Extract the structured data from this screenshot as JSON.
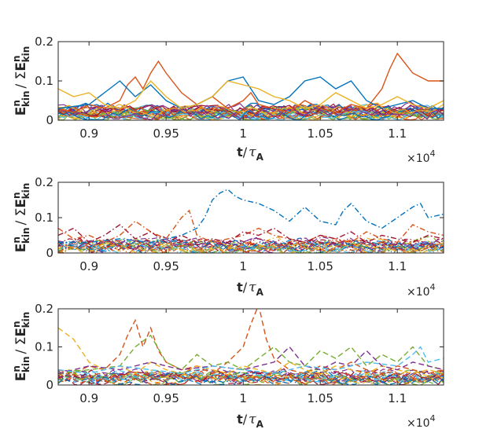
{
  "chart_data": [
    {
      "type": "line",
      "panel": "top",
      "line_style": "solid",
      "title": "",
      "xlabel": {
        "t": "t",
        "slash": "/",
        "tau": "τ",
        "sub": "A"
      },
      "ylabel": {
        "E": "E",
        "sup": "n",
        "sub": "kin",
        "mid": "/ Σ"
      },
      "x_exponent": {
        "prefix": "×10",
        "power": "4"
      },
      "xlim": [
        0.88,
        1.13
      ],
      "ylim": [
        0,
        0.2
      ],
      "x_ticks": [
        0.9,
        0.95,
        1,
        1.05,
        1.1
      ],
      "x_tick_labels": [
        "0.9",
        "0.95",
        "1",
        "1.05",
        "1.1"
      ],
      "y_ticks": [
        0,
        0.1,
        0.2
      ],
      "y_tick_labels": [
        "0",
        "0.1",
        "0.2"
      ],
      "n_series": 28,
      "highlight_series": [
        {
          "color": "#D95319",
          "x": [
            0.88,
            0.89,
            0.9,
            0.91,
            0.92,
            0.925,
            0.93,
            0.935,
            0.94,
            0.945,
            0.95,
            0.96,
            0.97,
            0.98,
            0.99,
            1.0,
            1.005,
            1.01,
            1.02,
            1.03,
            1.04,
            1.05,
            1.06,
            1.07,
            1.08,
            1.09,
            1.095,
            1.1,
            1.11,
            1.12,
            1.13
          ],
          "y": [
            0.03,
            0.02,
            0.04,
            0.03,
            0.05,
            0.09,
            0.11,
            0.08,
            0.12,
            0.15,
            0.12,
            0.07,
            0.04,
            0.06,
            0.03,
            0.05,
            0.07,
            0.04,
            0.03,
            0.02,
            0.05,
            0.03,
            0.02,
            0.04,
            0.03,
            0.08,
            0.13,
            0.17,
            0.12,
            0.1,
            0.1
          ]
        },
        {
          "color": "#0072BD",
          "x": [
            0.88,
            0.9,
            0.91,
            0.92,
            0.93,
            0.94,
            0.95,
            0.96,
            0.97,
            0.98,
            0.99,
            1.0,
            1.01,
            1.02,
            1.03,
            1.04,
            1.05,
            1.06,
            1.07,
            1.08,
            1.09,
            1.1,
            1.11,
            1.12,
            1.13
          ],
          "y": [
            0.03,
            0.04,
            0.07,
            0.1,
            0.06,
            0.09,
            0.05,
            0.03,
            0.04,
            0.06,
            0.1,
            0.11,
            0.05,
            0.04,
            0.06,
            0.1,
            0.11,
            0.08,
            0.1,
            0.05,
            0.03,
            0.04,
            0.05,
            0.03,
            0.03
          ]
        },
        {
          "color": "#EDB120",
          "x": [
            0.88,
            0.89,
            0.9,
            0.91,
            0.92,
            0.93,
            0.94,
            0.95,
            0.96,
            0.97,
            0.98,
            0.99,
            1.0,
            1.01,
            1.02,
            1.03,
            1.04,
            1.05,
            1.06,
            1.07,
            1.08,
            1.09,
            1.1,
            1.11,
            1.12,
            1.13
          ],
          "y": [
            0.08,
            0.06,
            0.07,
            0.04,
            0.03,
            0.05,
            0.1,
            0.06,
            0.03,
            0.04,
            0.06,
            0.1,
            0.09,
            0.08,
            0.06,
            0.05,
            0.03,
            0.04,
            0.07,
            0.05,
            0.03,
            0.04,
            0.06,
            0.04,
            0.03,
            0.05
          ]
        }
      ]
    },
    {
      "type": "line",
      "panel": "middle",
      "line_style": "dashdot",
      "title": "",
      "xlabel": {
        "t": "t",
        "slash": "/",
        "tau": "τ",
        "sub": "A"
      },
      "ylabel": {
        "E": "E",
        "sup": "n",
        "sub": "kin",
        "mid": "/ Σ"
      },
      "x_exponent": {
        "prefix": "×10",
        "power": "4"
      },
      "xlim": [
        0.88,
        1.13
      ],
      "ylim": [
        0,
        0.2
      ],
      "x_ticks": [
        0.9,
        0.95,
        1,
        1.05,
        1.1
      ],
      "x_tick_labels": [
        "0.9",
        "0.95",
        "1",
        "1.05",
        "1.1"
      ],
      "y_ticks": [
        0,
        0.1,
        0.2
      ],
      "y_tick_labels": [
        "0",
        "0.1",
        "0.2"
      ],
      "n_series": 28,
      "highlight_series": [
        {
          "color": "#0072BD",
          "x": [
            0.88,
            0.9,
            0.92,
            0.94,
            0.96,
            0.97,
            0.975,
            0.98,
            0.985,
            0.99,
            0.995,
            1.0,
            1.01,
            1.02,
            1.03,
            1.04,
            1.05,
            1.06,
            1.065,
            1.07,
            1.08,
            1.09,
            1.1,
            1.11,
            1.115,
            1.12,
            1.13
          ],
          "y": [
            0.03,
            0.03,
            0.04,
            0.03,
            0.05,
            0.07,
            0.1,
            0.15,
            0.17,
            0.18,
            0.16,
            0.15,
            0.14,
            0.12,
            0.09,
            0.13,
            0.09,
            0.08,
            0.12,
            0.14,
            0.09,
            0.07,
            0.1,
            0.13,
            0.14,
            0.1,
            0.11
          ]
        },
        {
          "color": "#D95319",
          "x": [
            0.88,
            0.89,
            0.9,
            0.91,
            0.92,
            0.93,
            0.94,
            0.95,
            0.96,
            0.965,
            0.97,
            0.98,
            0.99,
            1.0,
            1.01,
            1.02,
            1.03,
            1.04,
            1.05,
            1.06,
            1.07,
            1.08,
            1.09,
            1.1,
            1.11,
            1.12,
            1.13
          ],
          "y": [
            0.07,
            0.04,
            0.05,
            0.03,
            0.05,
            0.09,
            0.06,
            0.04,
            0.1,
            0.12,
            0.05,
            0.03,
            0.04,
            0.05,
            0.07,
            0.05,
            0.04,
            0.03,
            0.05,
            0.04,
            0.03,
            0.06,
            0.04,
            0.03,
            0.08,
            0.06,
            0.05
          ]
        },
        {
          "color": "#A2142F",
          "x": [
            0.88,
            0.89,
            0.9,
            0.91,
            0.92,
            0.93,
            0.94,
            0.95,
            0.96,
            0.97,
            0.98,
            0.99,
            1.0,
            1.01,
            1.02,
            1.03,
            1.04,
            1.05,
            1.06,
            1.07,
            1.08,
            1.09,
            1.1,
            1.11,
            1.12,
            1.13
          ],
          "y": [
            0.05,
            0.07,
            0.03,
            0.05,
            0.08,
            0.04,
            0.06,
            0.03,
            0.05,
            0.03,
            0.04,
            0.03,
            0.06,
            0.05,
            0.07,
            0.04,
            0.03,
            0.05,
            0.04,
            0.06,
            0.03,
            0.05,
            0.04,
            0.03,
            0.05,
            0.04
          ]
        }
      ]
    },
    {
      "type": "line",
      "panel": "bottom",
      "line_style": "dashed",
      "title": "",
      "xlabel": {
        "t": "t",
        "slash": "/",
        "tau": "τ",
        "sub": "A"
      },
      "ylabel": {
        "E": "E",
        "sup": "n",
        "sub": "kin",
        "mid": "/ Σ"
      },
      "x_exponent": {
        "prefix": "×10",
        "power": "4"
      },
      "xlim": [
        0.88,
        1.13
      ],
      "ylim": [
        0,
        0.2
      ],
      "x_ticks": [
        0.9,
        0.95,
        1,
        1.05,
        1.1
      ],
      "x_tick_labels": [
        "0.9",
        "0.95",
        "1",
        "1.05",
        "1.1"
      ],
      "y_ticks": [
        0,
        0.1,
        0.2
      ],
      "y_tick_labels": [
        "0",
        "0.1",
        "0.2"
      ],
      "n_series": 28,
      "highlight_series": [
        {
          "color": "#D95319",
          "x": [
            0.88,
            0.89,
            0.9,
            0.91,
            0.92,
            0.925,
            0.93,
            0.935,
            0.94,
            0.945,
            0.95,
            0.96,
            0.97,
            0.98,
            0.99,
            1.0,
            1.005,
            1.01,
            1.015,
            1.02,
            1.03,
            1.04,
            1.05,
            1.06,
            1.07,
            1.08,
            1.09,
            1.1,
            1.11,
            1.12,
            1.13
          ],
          "y": [
            0.04,
            0.03,
            0.05,
            0.04,
            0.08,
            0.13,
            0.17,
            0.1,
            0.15,
            0.09,
            0.06,
            0.04,
            0.05,
            0.03,
            0.06,
            0.1,
            0.16,
            0.21,
            0.12,
            0.07,
            0.04,
            0.03,
            0.05,
            0.04,
            0.06,
            0.04,
            0.03,
            0.05,
            0.04,
            0.03,
            0.04
          ]
        },
        {
          "color": "#EDB120",
          "x": [
            0.88,
            0.89,
            0.9,
            0.91,
            0.92,
            0.93,
            0.94,
            0.95,
            0.96,
            0.97,
            0.98,
            0.99,
            1.0,
            1.01,
            1.02,
            1.03,
            1.04,
            1.05,
            1.06,
            1.07,
            1.08,
            1.09,
            1.1,
            1.11,
            1.12,
            1.13
          ],
          "y": [
            0.15,
            0.12,
            0.06,
            0.04,
            0.05,
            0.03,
            0.06,
            0.04,
            0.03,
            0.05,
            0.04,
            0.03,
            0.05,
            0.04,
            0.03,
            0.06,
            0.04,
            0.03,
            0.05,
            0.04,
            0.03,
            0.05,
            0.04,
            0.03,
            0.04,
            0.03
          ]
        },
        {
          "color": "#77AC30",
          "x": [
            0.88,
            0.9,
            0.92,
            0.93,
            0.94,
            0.95,
            0.96,
            0.97,
            0.98,
            0.99,
            1.0,
            1.01,
            1.02,
            1.03,
            1.04,
            1.05,
            1.06,
            1.07,
            1.08,
            1.09,
            1.1,
            1.11,
            1.12,
            1.13
          ],
          "y": [
            0.03,
            0.04,
            0.05,
            0.1,
            0.13,
            0.06,
            0.04,
            0.08,
            0.05,
            0.06,
            0.04,
            0.07,
            0.1,
            0.06,
            0.05,
            0.09,
            0.07,
            0.1,
            0.05,
            0.08,
            0.06,
            0.1,
            0.05,
            0.04
          ]
        },
        {
          "color": "#7E2F8E",
          "x": [
            0.88,
            0.9,
            0.92,
            0.94,
            0.96,
            0.98,
            1.0,
            1.02,
            1.03,
            1.04,
            1.05,
            1.06,
            1.07,
            1.08,
            1.09,
            1.1,
            1.11,
            1.12,
            1.13
          ],
          "y": [
            0.03,
            0.05,
            0.04,
            0.06,
            0.04,
            0.05,
            0.04,
            0.06,
            0.1,
            0.05,
            0.04,
            0.06,
            0.05,
            0.09,
            0.05,
            0.04,
            0.06,
            0.05,
            0.04
          ]
        },
        {
          "color": "#4DBEEE",
          "x": [
            0.88,
            0.9,
            0.92,
            0.94,
            0.96,
            0.98,
            1.0,
            1.02,
            1.04,
            1.06,
            1.08,
            1.1,
            1.11,
            1.115,
            1.12,
            1.13
          ],
          "y": [
            0.04,
            0.03,
            0.05,
            0.04,
            0.03,
            0.05,
            0.04,
            0.03,
            0.05,
            0.04,
            0.06,
            0.05,
            0.08,
            0.1,
            0.06,
            0.07
          ]
        }
      ]
    }
  ],
  "palette": [
    "#0072BD",
    "#D95319",
    "#EDB120",
    "#7E2F8E",
    "#77AC30",
    "#4DBEEE",
    "#A2142F"
  ]
}
